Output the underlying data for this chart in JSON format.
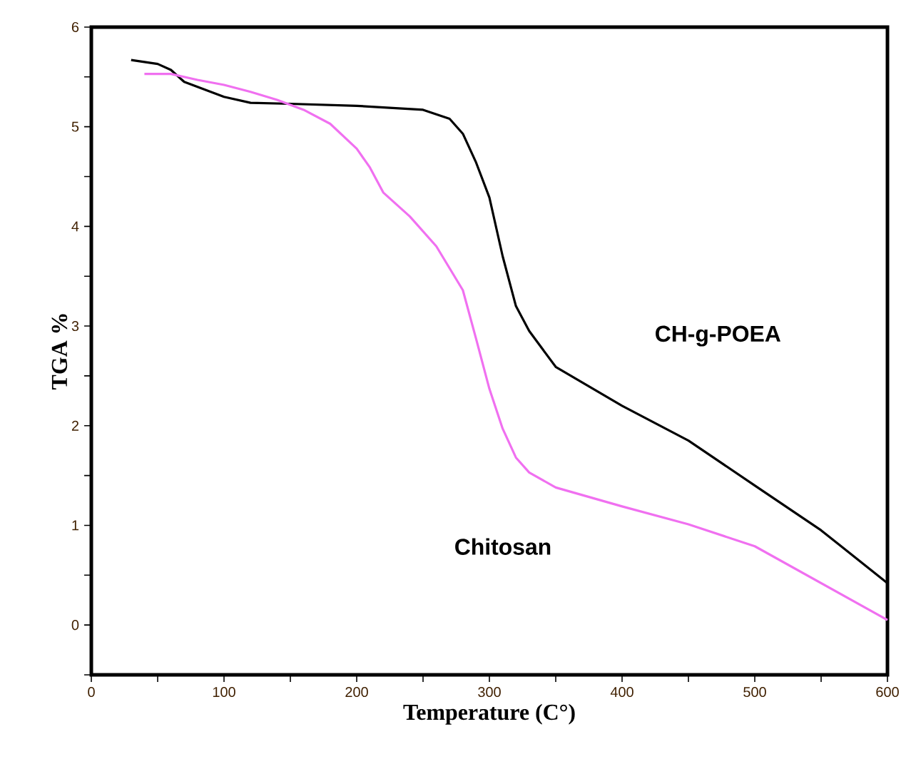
{
  "chart_data": {
    "type": "line",
    "xlabel": "Temperature (C°)",
    "ylabel": "TGA %",
    "xlim": [
      0,
      600
    ],
    "ylim": [
      -0.5,
      6
    ],
    "xticks": [
      0,
      {
        "value": 50,
        "label": null
      },
      100,
      {
        "value": 150,
        "label": null
      },
      200,
      {
        "value": 250,
        "label": null
      },
      300,
      {
        "value": 350,
        "label": null
      },
      400,
      {
        "value": 450,
        "label": null
      },
      500,
      {
        "value": 550,
        "label": null
      },
      600
    ],
    "yticks": [
      {
        "value": -0.5,
        "label": null
      },
      0,
      {
        "value": 0.5,
        "label": null
      },
      1,
      {
        "value": 1.5,
        "label": null
      },
      2,
      {
        "value": 2.5,
        "label": null
      },
      3,
      {
        "value": 3.5,
        "label": null
      },
      4,
      {
        "value": 4.5,
        "label": null
      },
      5,
      {
        "value": 5.5,
        "label": null
      },
      6
    ],
    "grid": false,
    "marker": "none",
    "line_style": "solid",
    "series": [
      {
        "color": "#000000",
        "x": [
          30,
          50,
          60,
          70,
          80,
          100,
          120,
          150,
          200,
          250,
          270,
          280,
          290,
          300,
          310,
          320,
          330,
          350,
          400,
          450,
          500,
          550,
          600
        ],
        "values": [
          5.67,
          5.63,
          5.57,
          5.45,
          5.4,
          5.3,
          5.24,
          5.23,
          5.21,
          5.17,
          5.08,
          4.93,
          4.64,
          4.29,
          3.7,
          3.2,
          2.95,
          2.59,
          2.2,
          1.85,
          1.4,
          0.95,
          0.42
        ]
      },
      {
        "color": "#f070f0",
        "x": [
          40,
          60,
          80,
          100,
          120,
          140,
          160,
          180,
          200,
          210,
          220,
          240,
          260,
          280,
          290,
          300,
          310,
          320,
          330,
          350,
          400,
          450,
          500,
          550,
          600
        ],
        "values": [
          5.53,
          5.53,
          5.47,
          5.42,
          5.35,
          5.27,
          5.17,
          5.03,
          4.78,
          4.59,
          4.34,
          4.1,
          3.8,
          3.36,
          2.87,
          2.37,
          1.97,
          1.68,
          1.53,
          1.38,
          1.19,
          1.01,
          0.79,
          0.42,
          0.05
        ]
      }
    ],
    "annotations": [
      "CH-g-POEA",
      "Chitosan"
    ]
  }
}
